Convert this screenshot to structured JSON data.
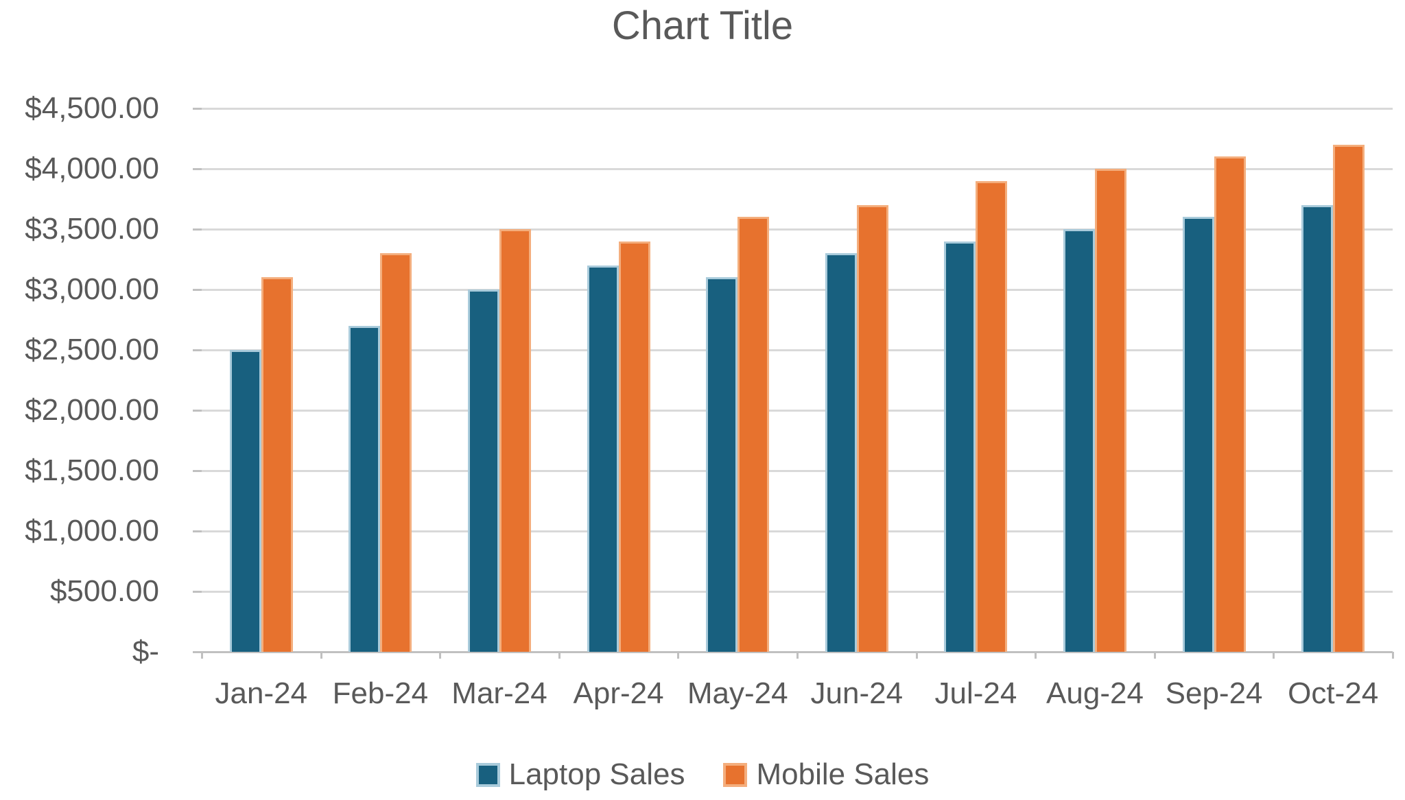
{
  "chart_data": {
    "type": "bar",
    "title": "Chart Title",
    "categories": [
      "Jan-24",
      "Feb-24",
      "Mar-24",
      "Apr-24",
      "May-24",
      "Jun-24",
      "Jul-24",
      "Aug-24",
      "Sep-24",
      "Oct-24"
    ],
    "series": [
      {
        "name": "Laptop Sales",
        "color": "#18607F",
        "edge_color": "#A9CBDB",
        "values": [
          2500,
          2700,
          3000,
          3200,
          3100,
          3300,
          3400,
          3500,
          3600,
          3700
        ]
      },
      {
        "name": "Mobile Sales",
        "color": "#E7722E",
        "edge_color": "#F4AE7D",
        "values": [
          3100,
          3300,
          3500,
          3400,
          3600,
          3700,
          3900,
          4000,
          4100,
          4200
        ]
      }
    ],
    "y_axis": {
      "min": 0,
      "max": 4500,
      "step": 500,
      "tick_labels": [
        "$-",
        "$500.00",
        "$1,000.00",
        "$1,500.00",
        "$2,000.00",
        "$2,500.00",
        "$3,000.00",
        "$3,500.00",
        "$4,000.00",
        "$4,500.00"
      ]
    },
    "grid": "horizontal",
    "legend_position": "bottom",
    "colors": {
      "background": "#FFFFFF",
      "text": "#595959",
      "gridline": "#D9D9D9",
      "axis_line": "#C0C0C0"
    }
  }
}
